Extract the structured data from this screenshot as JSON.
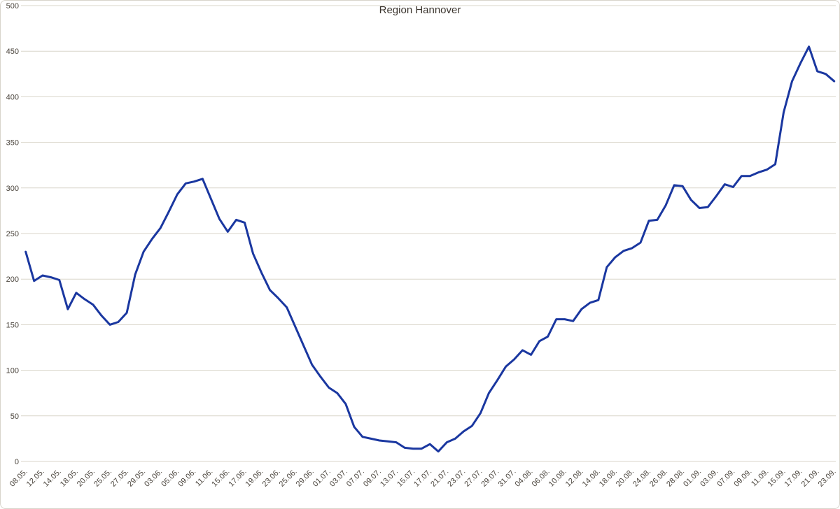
{
  "chart_data": {
    "type": "line",
    "title": "Region Hannover",
    "legend": "none",
    "grid": "horizontal",
    "ylim": [
      0,
      500
    ],
    "ytick_interval": 50,
    "ytick_labels": [
      "0",
      "50",
      "100",
      "150",
      "200",
      "250",
      "300",
      "350",
      "400",
      "450",
      "500"
    ],
    "x_labels": [
      "08.05.",
      "12.05.",
      "14.05.",
      "18.05.",
      "20.05.",
      "25.05.",
      "27.05.",
      "29.05.",
      "03.06.",
      "05.06.",
      "09.06.",
      "11.06.",
      "15.06.",
      "17.06.",
      "19.06.",
      "23.06.",
      "25.06.",
      "29.06.",
      "01.07.",
      "03.07.",
      "07.07.",
      "09.07.",
      "13.07.",
      "15.07.",
      "17.07.",
      "21.07.",
      "23.07.",
      "27.07.",
      "29.07.",
      "31.07.",
      "04.08.",
      "06.08.",
      "10.08.",
      "12.08.",
      "14.08.",
      "18.08.",
      "20.08.",
      "24.08.",
      "26.08.",
      "28.08.",
      "01.09.",
      "03.09.",
      "07.09.",
      "09.09.",
      "11.09.",
      "15.09.",
      "17.09.",
      "21.09.",
      "23.09."
    ],
    "label_every_n_points": 2,
    "series": [
      {
        "name": "Region Hannover",
        "color": "#1a37a0",
        "values": [
          230,
          198,
          204,
          202,
          199,
          167,
          185,
          178,
          172,
          160,
          150,
          153,
          163,
          205,
          230,
          244,
          256,
          274,
          293,
          305,
          307,
          310,
          288,
          266,
          252,
          265,
          262,
          228,
          207,
          188,
          179,
          169,
          148,
          127,
          106,
          93,
          81,
          75,
          63,
          38,
          27,
          25,
          23,
          22,
          21,
          15,
          14,
          14,
          19,
          11,
          21,
          25,
          33,
          39,
          53,
          75,
          89,
          104,
          112,
          122,
          117,
          132,
          137,
          156,
          156,
          154,
          167,
          174,
          177,
          213,
          224,
          231,
          234,
          240,
          264,
          265,
          281,
          303,
          302,
          287,
          278,
          279,
          291,
          304,
          301,
          313,
          313,
          317,
          320,
          326,
          383,
          417,
          437,
          455,
          428,
          425,
          417
        ]
      }
    ],
    "colors": {
      "background": "#ffffff",
      "border": "#d8d4cb",
      "gridline": "#d9d5ca",
      "axis_text": "#4a443c",
      "title_text": "#3b352e"
    }
  }
}
